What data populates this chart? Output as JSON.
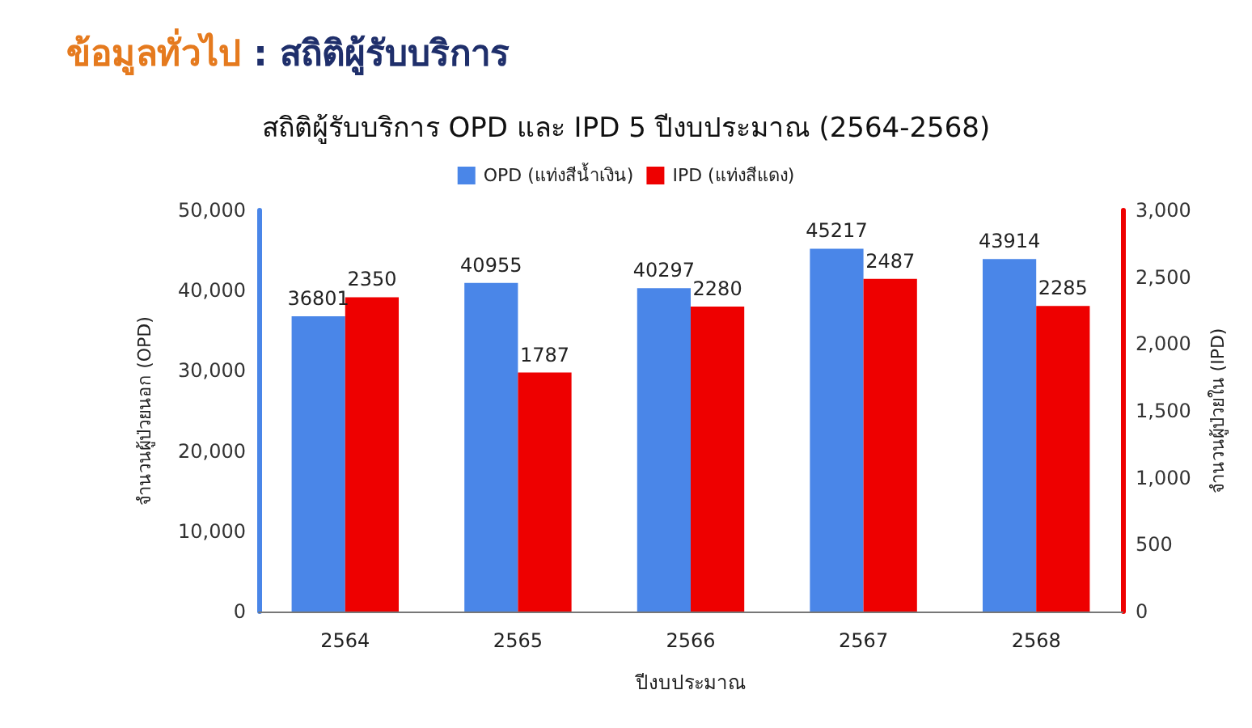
{
  "chart_data": {
    "type": "bar",
    "title": "ข้อมูลทั่วไป : สถิติผู้รับบริการ",
    "subtitle": "สถิติผู้รับบริการ OPD และ IPD 5 ปีงบประมาณ (2564-2568)",
    "xlabel": "ปีงบประมาณ",
    "ylabel": "จำนวนผู้ป่วยนอก (OPD)",
    "y2label": "จำนวนผู้ป่วยใน (IPD)",
    "categories": [
      "2564",
      "2565",
      "2566",
      "2567",
      "2568"
    ],
    "series": [
      {
        "name": "OPD (แท่งสีน้ำเงิน)",
        "color": "#4a86e8",
        "values": [
          36801,
          40955,
          40297,
          45217,
          43914
        ]
      },
      {
        "name": "IPD (แท่งสีแดง)",
        "color": "#ee0000",
        "axis": "y2",
        "values": [
          2350,
          1787,
          2280,
          2487,
          2285
        ]
      }
    ],
    "ylim": [
      0,
      50000
    ],
    "yticks": [
      0,
      {
        "value": 10000,
        "label": "10,000"
      },
      {
        "value": 20000,
        "label": "20,000"
      },
      {
        "value": 30000,
        "label": "30,000"
      },
      {
        "value": 40000,
        "label": "40,000"
      },
      {
        "value": 50000,
        "label": "50,000"
      }
    ],
    "y2lim": [
      0,
      3000
    ],
    "y2ticks": [
      0,
      500,
      {
        "value": 1000,
        "label": "1,000"
      },
      {
        "value": 1500,
        "label": "1,500"
      },
      {
        "value": 2000,
        "label": "2,000"
      },
      {
        "value": 2500,
        "label": "2,500"
      },
      {
        "value": 3000,
        "label": "3,000"
      }
    ],
    "data_labels": true,
    "grid": false,
    "legend": "top"
  }
}
